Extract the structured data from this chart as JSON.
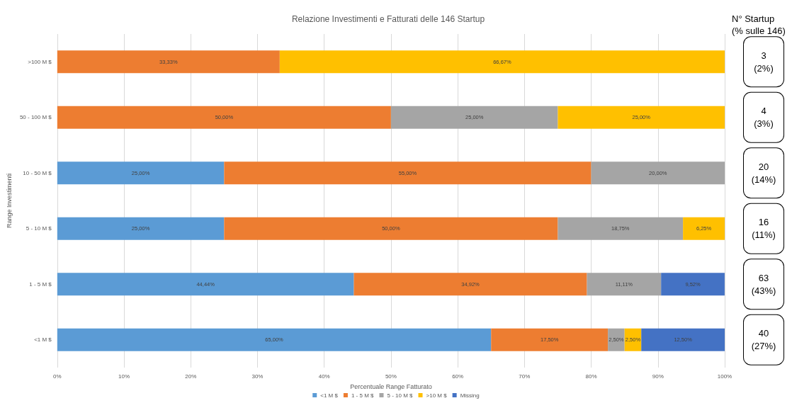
{
  "chart_data": {
    "type": "bar",
    "orientation": "horizontal",
    "stacked": true,
    "title": "Relazione Investimenti e Fatturati delle 146 Startup",
    "xlabel": "Percentuale Range Fatturato",
    "ylabel": "Range Investimenti",
    "categories": [
      ">100 M $",
      "50 - 100 M $",
      "10 - 50 M $",
      "5 - 10 M $",
      "1 - 5 M $",
      "<1 M $"
    ],
    "series": [
      {
        "name": "<1 M $",
        "color": "#5b9bd5",
        "values": [
          null,
          null,
          25,
          25,
          44.44,
          65
        ],
        "value_labels": [
          null,
          null,
          "25,00%",
          "25,00%",
          "44,44%",
          "65,00%"
        ]
      },
      {
        "name": "1 - 5 M $",
        "color": "#ed7d31",
        "values": [
          33.33,
          50,
          55,
          50,
          34.92,
          17.5
        ],
        "value_labels": [
          "33,33%",
          "50,00%",
          "55,00%",
          "50,00%",
          "34,92%",
          "17,50%"
        ]
      },
      {
        "name": "5 - 10 M $",
        "color": "#a5a5a5",
        "values": [
          null,
          25,
          20,
          18.75,
          11.11,
          2.5
        ],
        "value_labels": [
          null,
          "25,00%",
          "20,00%",
          "18,75%",
          "11,11%",
          "2,50%"
        ]
      },
      {
        "name": ">10 M $",
        "color": "#ffc000",
        "values": [
          66.67,
          25,
          null,
          6.25,
          null,
          2.5
        ],
        "value_labels": [
          "66,67%",
          "25,00%",
          null,
          "6,25%",
          null,
          "2,50%"
        ]
      },
      {
        "name": "Missing",
        "color": "#4472c4",
        "values": [
          null,
          null,
          null,
          null,
          9.52,
          12.5
        ],
        "value_labels": [
          null,
          null,
          null,
          null,
          "9,52%",
          "12,50%"
        ]
      }
    ],
    "xlim": [
      0,
      100
    ],
    "xticks": [
      {
        "value": 0,
        "label": "0%"
      },
      {
        "value": 10,
        "label": "10%"
      },
      {
        "value": 20,
        "label": "20%"
      },
      {
        "value": 30,
        "label": "30%"
      },
      {
        "value": 40,
        "label": "40%"
      },
      {
        "value": 50,
        "label": "50%"
      },
      {
        "value": 60,
        "label": "60%"
      },
      {
        "value": 70,
        "label": "70%"
      },
      {
        "value": 80,
        "label": "80%"
      },
      {
        "value": 90,
        "label": "90%"
      },
      {
        "value": 100,
        "label": "100%"
      }
    ],
    "grid": "x",
    "legend": "bottom",
    "annotations": [
      "N° Startup\n(% sulle 146)",
      "3\n(2%)",
      "4\n(3%)",
      "20\n(14%)",
      "16\n(11%)",
      "63\n(43%)",
      "40\n(27%)"
    ]
  }
}
